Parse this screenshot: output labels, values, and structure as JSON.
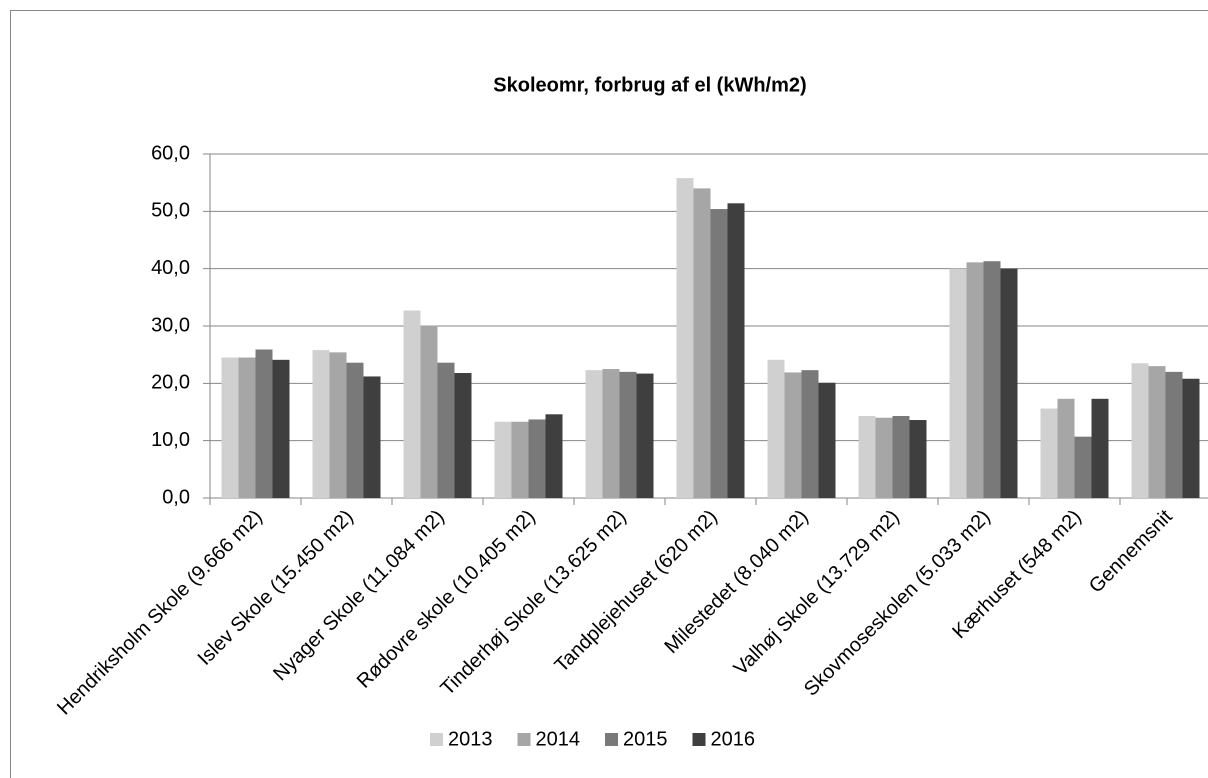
{
  "chart_data": {
    "type": "bar",
    "title": "Skoleomr, forbrug af el (kWh/m2)",
    "categories": [
      "Hendriksholm Skole (9.666 m2)",
      "Islev Skole (15.450 m2)",
      "Nyager Skole (11.084 m2)",
      "Rødovre skole (10.405 m2)",
      "Tinderhøj Skole (13.625 m2)",
      "Tandplejehuset (620 m2)",
      "Milestedet (8.040 m2)",
      "Valhøj Skole (13.729 m2)",
      "Skovmoseskolen (5.033 m2)",
      "Kærhuset (548 m2)",
      "Gennemsnit"
    ],
    "series": [
      {
        "name": "2013",
        "color": "#d0d0d0",
        "values": [
          24.5,
          25.8,
          32.7,
          13.3,
          22.3,
          55.8,
          24.1,
          14.3,
          40.0,
          15.6,
          23.5
        ]
      },
      {
        "name": "2014",
        "color": "#a6a6a6",
        "values": [
          24.5,
          25.4,
          30.1,
          13.3,
          22.5,
          54.0,
          21.9,
          14.0,
          41.1,
          17.3,
          23.0
        ]
      },
      {
        "name": "2015",
        "color": "#797979",
        "values": [
          25.9,
          23.6,
          23.6,
          13.7,
          22.0,
          50.4,
          22.3,
          14.3,
          41.3,
          10.7,
          22.0
        ]
      },
      {
        "name": "2016",
        "color": "#3f3f3f",
        "values": [
          24.1,
          21.2,
          21.8,
          14.6,
          21.7,
          51.4,
          20.1,
          13.6,
          40.0,
          17.3,
          20.8
        ]
      }
    ],
    "ylim": [
      0,
      60
    ],
    "yticks": [
      {
        "value": 0,
        "label": "0,0"
      },
      {
        "value": 10,
        "label": "10,0"
      },
      {
        "value": 20,
        "label": "20,0"
      },
      {
        "value": 30,
        "label": "30,0"
      },
      {
        "value": 40,
        "label": "40,0"
      },
      {
        "value": 50,
        "label": "50,0"
      },
      {
        "value": 60,
        "label": "60,0"
      }
    ],
    "grid": true,
    "legend": "bottom"
  }
}
